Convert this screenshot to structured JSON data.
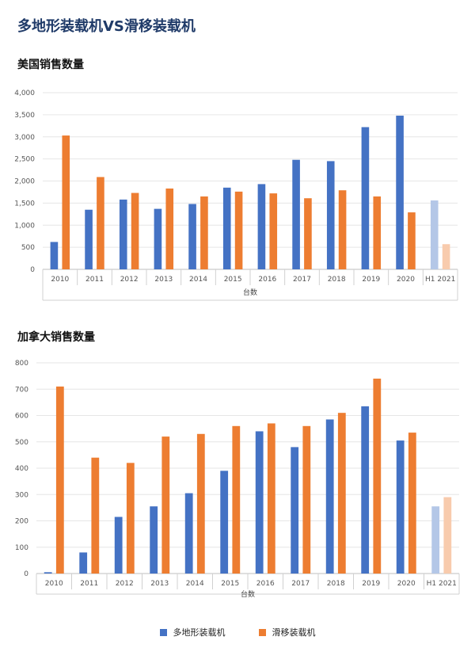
{
  "page": {
    "title": "多地形装载机VS滑移装载机"
  },
  "colors": {
    "series_a": "#4472c4",
    "series_b": "#ed7d31",
    "series_a_light": "#b4c7e7",
    "series_b_light": "#f8cbad",
    "grid": "#e6e6e6"
  },
  "legend": {
    "items": [
      "多地形装载机",
      "滑移装载机"
    ]
  },
  "chart_data": [
    {
      "type": "bar",
      "title": "美国销售数量",
      "xlabel": "台数",
      "ylabel": "",
      "ylim": [
        0,
        4000
      ],
      "yticks": [
        0,
        500,
        1000,
        1500,
        2000,
        2500,
        3000,
        3500,
        4000
      ],
      "ytick_labels": [
        "0",
        "500",
        "1,000",
        "1,500",
        "2,000",
        "2,500",
        "3,000",
        "3,500",
        "4,000"
      ],
      "categories": [
        "2010",
        "2011",
        "2012",
        "2013",
        "2014",
        "2015",
        "2016",
        "2017",
        "2018",
        "2019",
        "2020",
        "H1 2021"
      ],
      "highlight_last_category_lighter": true,
      "grid": true,
      "legend_position": "bottom",
      "series": [
        {
          "name": "多地形装载机",
          "values": [
            620,
            1350,
            1580,
            1370,
            1480,
            1850,
            1930,
            2480,
            2450,
            3220,
            3480,
            1560
          ]
        },
        {
          "name": "滑移装载机",
          "values": [
            3030,
            2090,
            1730,
            1830,
            1650,
            1760,
            1720,
            1610,
            1790,
            1650,
            1290,
            570
          ]
        }
      ]
    },
    {
      "type": "bar",
      "title": "加拿大销售数量",
      "xlabel": "台数",
      "ylabel": "",
      "ylim": [
        0,
        800
      ],
      "yticks": [
        0,
        100,
        200,
        300,
        400,
        500,
        600,
        700,
        800
      ],
      "ytick_labels": [
        "0",
        "100",
        "200",
        "300",
        "400",
        "500",
        "600",
        "700",
        "800"
      ],
      "categories": [
        "2010",
        "2011",
        "2012",
        "2013",
        "2014",
        "2015",
        "2016",
        "2017",
        "2018",
        "2019",
        "2020",
        "H1 2021"
      ],
      "highlight_last_category_lighter": true,
      "grid": true,
      "legend_position": "bottom",
      "series": [
        {
          "name": "多地形装载机",
          "values": [
            5,
            80,
            215,
            255,
            305,
            390,
            540,
            480,
            585,
            635,
            505,
            255
          ]
        },
        {
          "name": "滑移装载机",
          "values": [
            710,
            440,
            420,
            520,
            530,
            560,
            570,
            560,
            610,
            740,
            535,
            290
          ]
        }
      ]
    }
  ]
}
